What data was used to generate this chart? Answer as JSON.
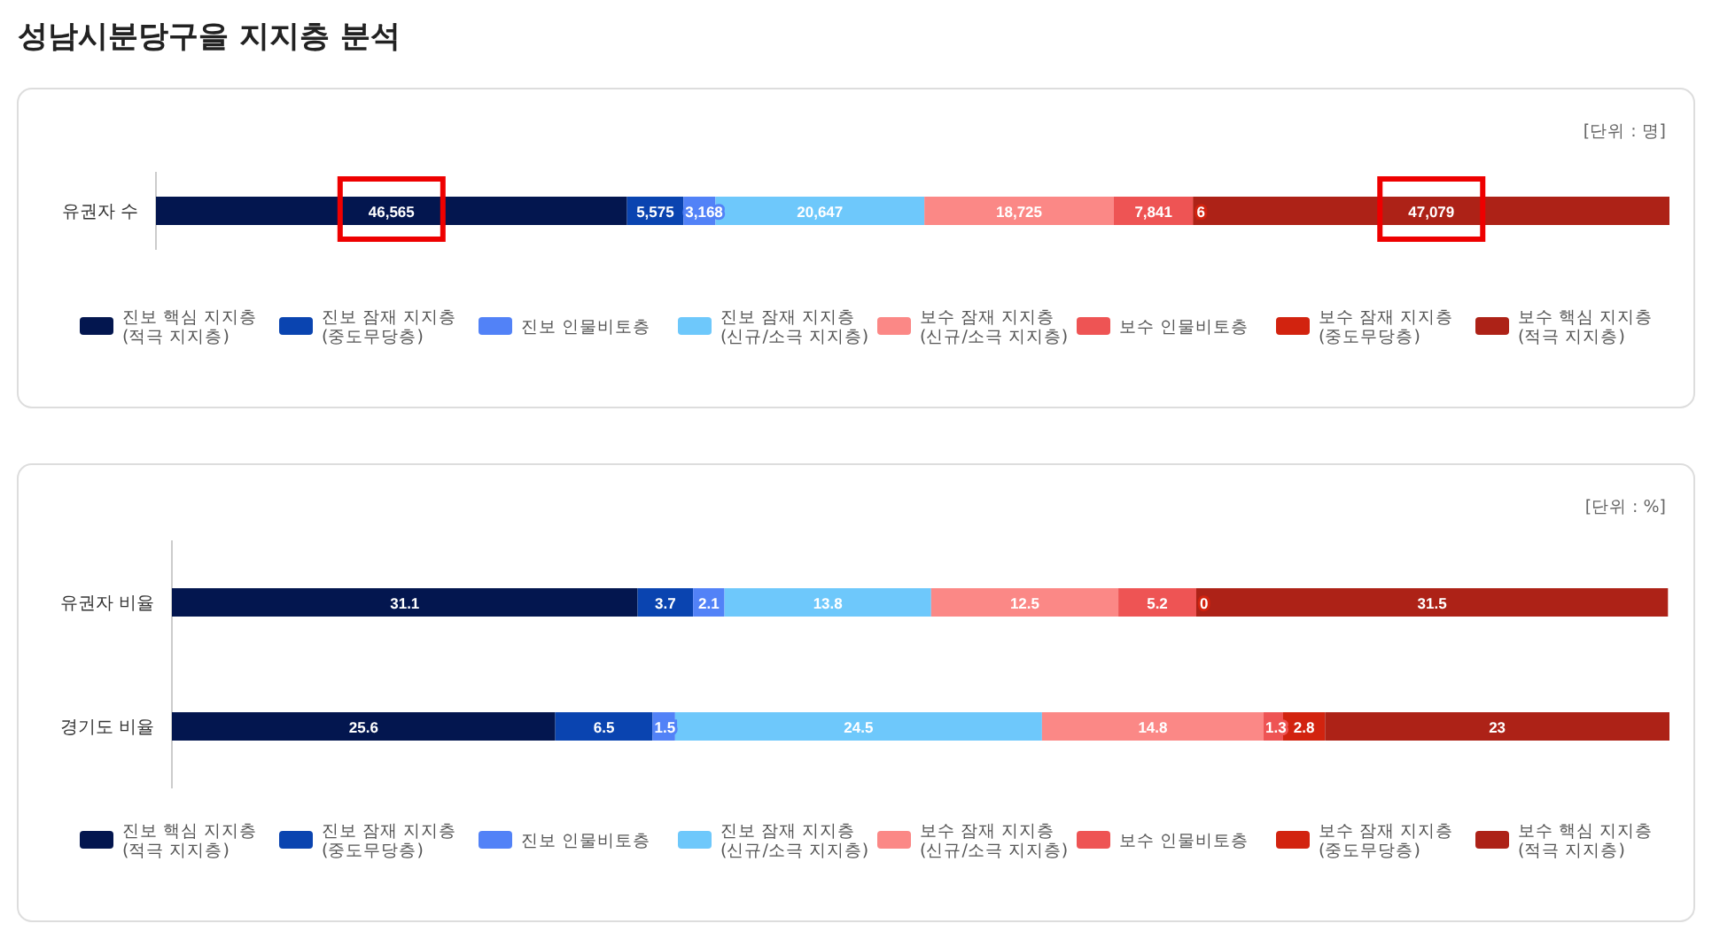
{
  "chart_data": [
    {
      "type": "bar",
      "orientation": "horizontal",
      "stacked": true,
      "data_labels": true,
      "legend": "bottom",
      "title": "성남시분당구을 지지층 분석",
      "annotations": [
        "[단위 : 명]"
      ],
      "categories": [
        "유권자 수"
      ],
      "series": [
        {
          "name": "진보 핵심 지지층\n(적극 지지층)",
          "color": "#03164f",
          "values": [
            46565
          ],
          "value_labels": [
            "46,565"
          ]
        },
        {
          "name": "진보 잠재 지지층\n(중도무당층)",
          "color": "#0a44b0",
          "values": [
            5575
          ],
          "value_labels": [
            "5,575"
          ]
        },
        {
          "name": "진보 인물비토층",
          "color": "#5282f7",
          "values": [
            3168
          ],
          "value_labels": [
            "3,168"
          ]
        },
        {
          "name": "진보 잠재 지지층\n(신규/소극 지지층)",
          "color": "#6ec8fb",
          "values": [
            20647
          ],
          "value_labels": [
            "20,647"
          ]
        },
        {
          "name": "보수 잠재 지지층\n(신규/소극 지지층)",
          "color": "#fb8886",
          "values": [
            18725
          ],
          "value_labels": [
            "18,725"
          ]
        },
        {
          "name": "보수 인물비토층",
          "color": "#ee5454",
          "values": [
            7841
          ],
          "value_labels": [
            "7,841"
          ]
        },
        {
          "name": "보수 잠재 지지층\n(중도무당층)",
          "color": "#d2230f",
          "values": [
            6
          ],
          "value_labels": [
            "6"
          ]
        },
        {
          "name": "보수 핵심 지지층\n(적극 지지층)",
          "color": "#ad2217",
          "values": [
            47079
          ],
          "value_labels": [
            "47,079"
          ]
        }
      ]
    },
    {
      "type": "bar",
      "orientation": "horizontal",
      "stacked": true,
      "data_labels": true,
      "legend": "bottom",
      "annotations": [
        "[단위 : %]"
      ],
      "categories": [
        "유권자 비율",
        "경기도 비율"
      ],
      "series": [
        {
          "name": "진보 핵심 지지층\n(적극 지지층)",
          "color": "#03164f",
          "values": [
            31.1,
            25.6
          ]
        },
        {
          "name": "진보 잠재 지지층\n(중도무당층)",
          "color": "#0a44b0",
          "values": [
            3.7,
            6.5
          ]
        },
        {
          "name": "진보 인물비토층",
          "color": "#5282f7",
          "values": [
            2.1,
            1.5
          ]
        },
        {
          "name": "진보 잠재 지지층\n(신규/소극 지지층)",
          "color": "#6ec8fb",
          "values": [
            13.8,
            24.5
          ]
        },
        {
          "name": "보수 잠재 지지층\n(신규/소극 지지층)",
          "color": "#fb8886",
          "values": [
            12.5,
            14.8
          ]
        },
        {
          "name": "보수 인물비토층",
          "color": "#ee5454",
          "values": [
            5.2,
            1.3
          ]
        },
        {
          "name": "보수 잠재 지지층\n(중도무당층)",
          "color": "#d2230f",
          "values": [
            0,
            2.8
          ]
        },
        {
          "name": "보수 핵심 지지층\n(적극 지지층)",
          "color": "#ad2217",
          "values": [
            31.5,
            23
          ]
        }
      ]
    }
  ]
}
